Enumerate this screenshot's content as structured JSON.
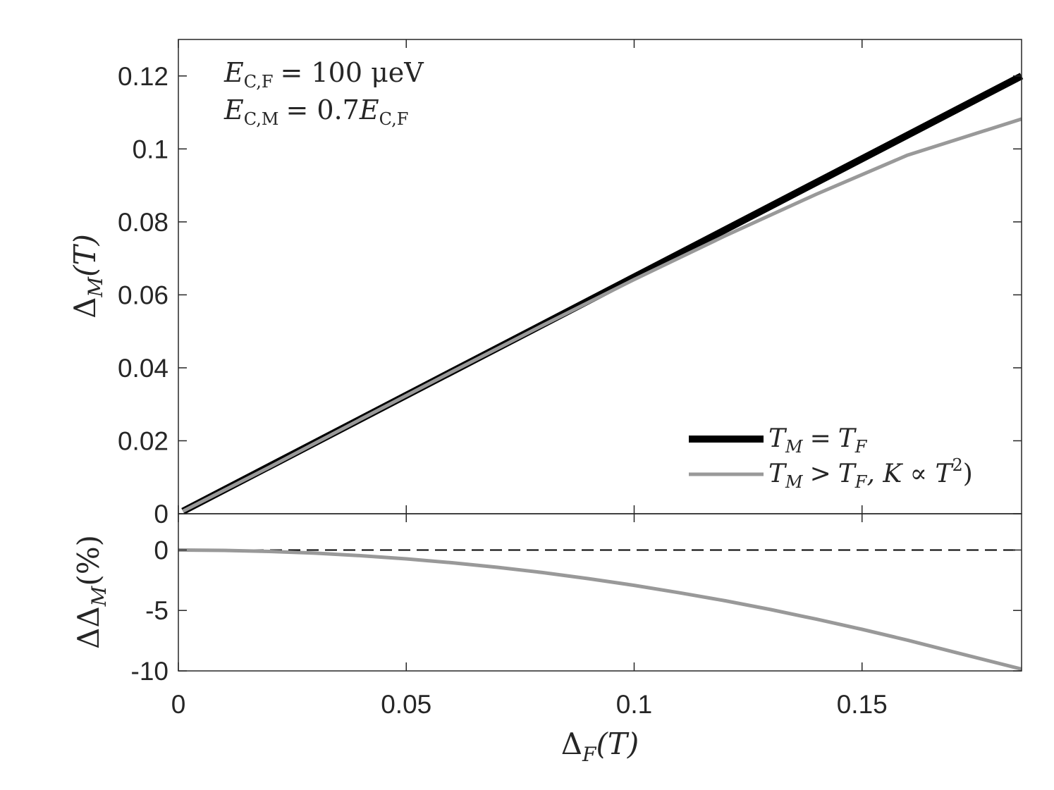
{
  "chart_data": [
    {
      "type": "line",
      "panel": "top",
      "xlim": [
        0,
        0.185
      ],
      "ylim": [
        0,
        0.13
      ],
      "xticks": [
        0,
        0.05,
        0.1,
        0.15
      ],
      "yticks": [
        0,
        0.02,
        0.04,
        0.06,
        0.08,
        0.1,
        0.12
      ],
      "ytick_labels": [
        "0",
        "0.02",
        "0.04",
        "0.06",
        "0.08",
        "0.1",
        "0.12"
      ],
      "ylabel": {
        "base": "Δ",
        "sub": "M",
        "arg": "(T)"
      },
      "annotation": [
        {
          "lhs": "E",
          "sub": "C,F",
          "rhs": "= 100 μeV"
        },
        {
          "lhs": "E",
          "sub": "C,M",
          "rhs": "= 0.7",
          "rhs_var": "E",
          "rhs_sub": "C,F"
        }
      ],
      "legend_position": "bottom-right",
      "series": [
        {
          "name": "T_M = T_F",
          "label": {
            "a": "T",
            "a_sub": "M",
            "op": "=",
            "b": "T",
            "b_sub": "F"
          },
          "color": "#000000",
          "x": [
            0.001,
            0.185
          ],
          "y": [
            0.0007,
            0.12
          ]
        },
        {
          "name": "T_M > T_F, K ∝ T^2)",
          "label": {
            "a": "T",
            "a_sub": "M",
            "op": ">",
            "b": "T",
            "b_sub": "F",
            "rest": ", K ∝ T",
            "sup": "2",
            "close": ")"
          },
          "color": "#999999",
          "x": [
            0.001,
            0.02,
            0.04,
            0.06,
            0.08,
            0.1,
            0.12,
            0.14,
            0.16,
            0.185
          ],
          "y": [
            0.0007,
            0.0128,
            0.0259,
            0.0389,
            0.0517,
            0.0642,
            0.0762,
            0.0876,
            0.0983,
            0.1082
          ]
        }
      ]
    },
    {
      "type": "line",
      "panel": "bottom",
      "xlim": [
        0,
        0.185
      ],
      "ylim": [
        -10,
        3
      ],
      "xticks": [
        0,
        0.05,
        0.1,
        0.15
      ],
      "xtick_labels": [
        "0",
        "0.05",
        "0.1",
        "0.15"
      ],
      "yticks": [
        -10,
        -5,
        0
      ],
      "ytick_labels": [
        "-10",
        "-5",
        "0"
      ],
      "xlabel": {
        "base": "Δ",
        "sub": "F",
        "arg": "(T)"
      },
      "ylabel": {
        "base": "ΔΔ",
        "sub": "M",
        "arg": "(%)"
      },
      "reference_line": {
        "y": 0,
        "style": "dashed",
        "color": "#000000"
      },
      "series": [
        {
          "name": "ΔΔ_M",
          "color": "#999999",
          "x": [
            0,
            0.01,
            0.02,
            0.03,
            0.04,
            0.05,
            0.06,
            0.07,
            0.08,
            0.09,
            0.1,
            0.11,
            0.12,
            0.13,
            0.14,
            0.15,
            0.16,
            0.17,
            0.185
          ],
          "y": [
            0,
            -0.03,
            -0.12,
            -0.26,
            -0.47,
            -0.73,
            -1.05,
            -1.43,
            -1.87,
            -2.37,
            -2.92,
            -3.54,
            -4.2,
            -4.93,
            -5.72,
            -6.56,
            -7.46,
            -8.42,
            -9.85
          ]
        }
      ]
    }
  ]
}
